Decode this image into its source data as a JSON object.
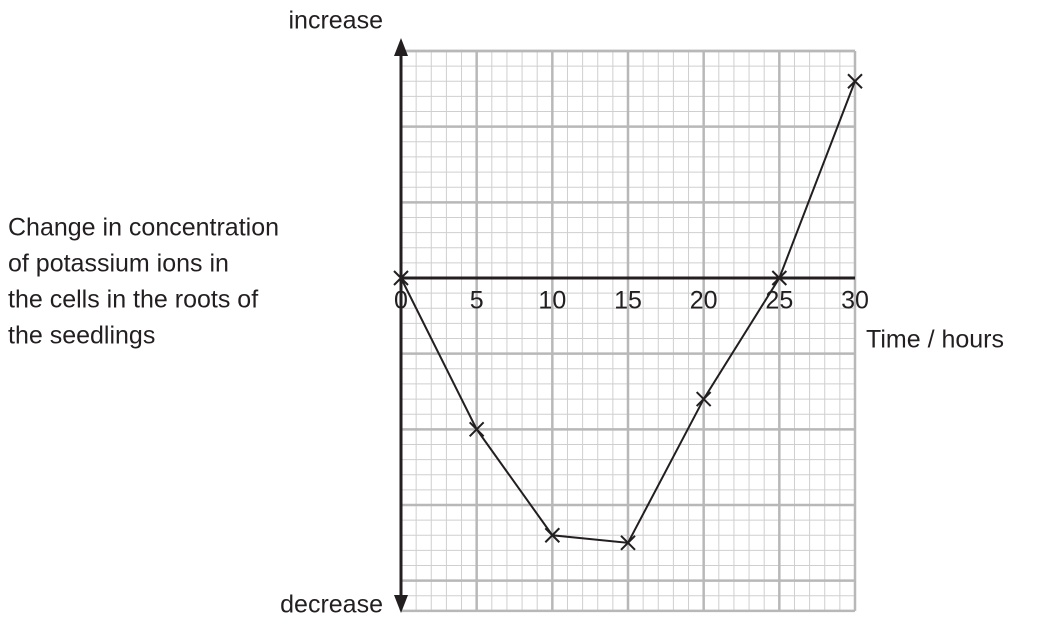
{
  "chart_data": {
    "type": "line",
    "x_label": "Time / hours",
    "y_label": [
      "Change in concentration",
      "of potassium ions in",
      "the cells in the roots of",
      "the seedlings"
    ],
    "y_top_label": "increase",
    "y_bottom_label": "decrease",
    "x": [
      0,
      5,
      10,
      15,
      20,
      25,
      30
    ],
    "series": [
      {
        "color": "#231f20",
        "values": [
          0,
          -10,
          -17,
          -17.5,
          -8,
          0,
          13
        ]
      }
    ],
    "xlim": [
      0,
      30
    ],
    "xticks": [
      0,
      5,
      10,
      15,
      20,
      25,
      30
    ],
    "ylim": [
      -22,
      15
    ],
    "grid": true
  }
}
